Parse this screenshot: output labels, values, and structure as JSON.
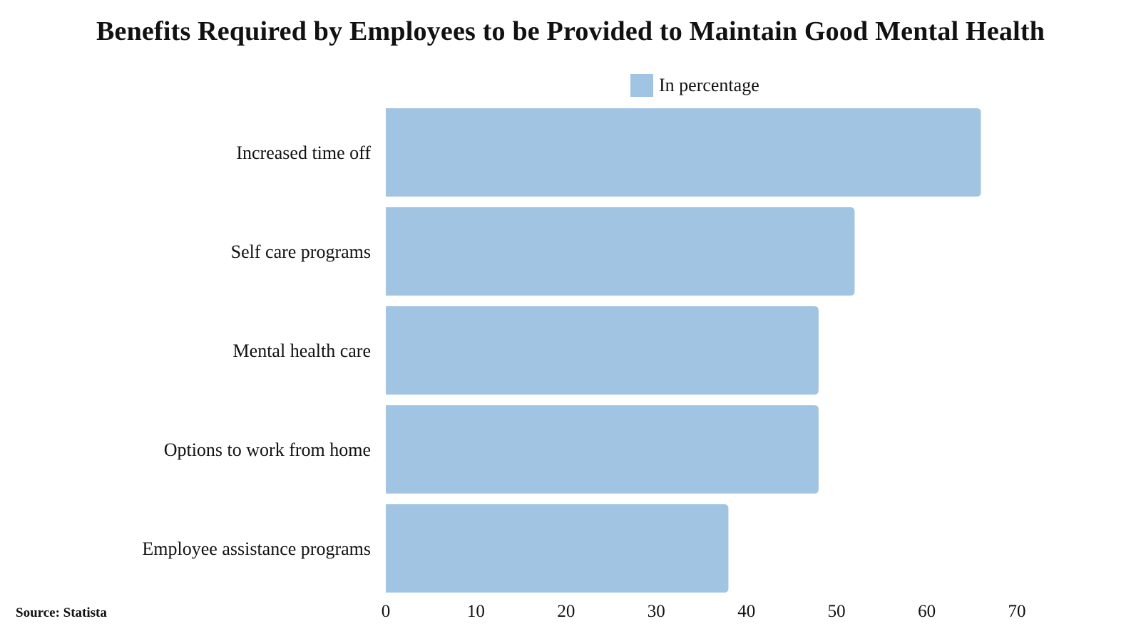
{
  "chart_data": {
    "type": "bar",
    "orientation": "horizontal",
    "title": "Benefits Required by Employees to be Provided to Maintain Good Mental Health",
    "categories": [
      "Increased time off",
      "Self care programs",
      "Mental health care",
      "Options to work from home",
      "Employee assistance programs"
    ],
    "series": [
      {
        "name": "In percentage",
        "values": [
          66,
          52,
          48,
          48,
          38
        ],
        "color": "#a1c4e2"
      }
    ],
    "xlim": [
      0,
      70
    ],
    "xticks": [
      "0",
      "10",
      "20",
      "30",
      "40",
      "50",
      "60",
      "70"
    ],
    "xlabel": "",
    "ylabel": "",
    "grid": false,
    "legend_position": "top-center"
  },
  "source": "Source: Statista"
}
